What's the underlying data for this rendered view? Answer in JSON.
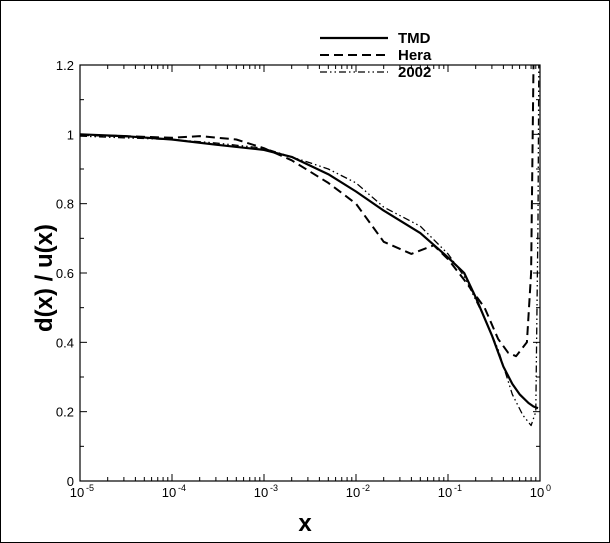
{
  "chart_data": {
    "type": "line",
    "title": "",
    "xlabel": "x",
    "ylabel": "d(x) / u(x)",
    "xscale": "log",
    "xlim": [
      1e-05,
      1
    ],
    "ylim": [
      0,
      1.2
    ],
    "grid": false,
    "legend_position": "top-right",
    "x_ticks": [
      {
        "base": "10",
        "exp": "-5",
        "value": 1e-05
      },
      {
        "base": "10",
        "exp": "-4",
        "value": 0.0001
      },
      {
        "base": "10",
        "exp": "-3",
        "value": 0.001
      },
      {
        "base": "10",
        "exp": "-2",
        "value": 0.01
      },
      {
        "base": "10",
        "exp": "-1",
        "value": 0.1
      },
      {
        "base": "10",
        "exp": "0",
        "value": 1
      }
    ],
    "y_ticks": [
      {
        "label": "0",
        "value": 0
      },
      {
        "label": "0.2",
        "value": 0.2
      },
      {
        "label": "0.4",
        "value": 0.4
      },
      {
        "label": "0.6",
        "value": 0.6
      },
      {
        "label": "0.8",
        "value": 0.8
      },
      {
        "label": "1",
        "value": 1
      },
      {
        "label": "1.2",
        "value": 1.2
      }
    ],
    "series": [
      {
        "name": "TMD",
        "style": "solid",
        "color": "#000000",
        "points": [
          [
            1e-05,
            1.0
          ],
          [
            3e-05,
            0.995
          ],
          [
            0.0001,
            0.985
          ],
          [
            0.0003,
            0.97
          ],
          [
            0.001,
            0.955
          ],
          [
            0.002,
            0.935
          ],
          [
            0.005,
            0.885
          ],
          [
            0.01,
            0.835
          ],
          [
            0.02,
            0.78
          ],
          [
            0.05,
            0.715
          ],
          [
            0.1,
            0.645
          ],
          [
            0.15,
            0.6
          ],
          [
            0.2,
            0.53
          ],
          [
            0.3,
            0.42
          ],
          [
            0.4,
            0.33
          ],
          [
            0.5,
            0.28
          ],
          [
            0.6,
            0.25
          ],
          [
            0.75,
            0.225
          ],
          [
            0.85,
            0.215
          ],
          [
            0.95,
            0.21
          ]
        ]
      },
      {
        "name": "Hera",
        "style": "dashed",
        "color": "#000000",
        "points": [
          [
            1e-05,
            0.998
          ],
          [
            3e-05,
            0.995
          ],
          [
            0.0001,
            0.99
          ],
          [
            0.0002,
            0.995
          ],
          [
            0.0005,
            0.985
          ],
          [
            0.001,
            0.96
          ],
          [
            0.002,
            0.925
          ],
          [
            0.005,
            0.86
          ],
          [
            0.01,
            0.8
          ],
          [
            0.02,
            0.69
          ],
          [
            0.04,
            0.655
          ],
          [
            0.07,
            0.68
          ],
          [
            0.1,
            0.64
          ],
          [
            0.15,
            0.58
          ],
          [
            0.25,
            0.5
          ],
          [
            0.35,
            0.41
          ],
          [
            0.45,
            0.37
          ],
          [
            0.55,
            0.36
          ],
          [
            0.65,
            0.385
          ],
          [
            0.72,
            0.4
          ],
          [
            0.8,
            0.6
          ],
          [
            0.85,
            1.2
          ]
        ]
      },
      {
        "name": "2002",
        "style": "dash-dot",
        "color": "#000000",
        "points": [
          [
            1e-05,
            0.995
          ],
          [
            3e-05,
            0.99
          ],
          [
            0.0001,
            0.985
          ],
          [
            0.0003,
            0.975
          ],
          [
            0.001,
            0.96
          ],
          [
            0.003,
            0.92
          ],
          [
            0.005,
            0.9
          ],
          [
            0.01,
            0.86
          ],
          [
            0.02,
            0.79
          ],
          [
            0.05,
            0.735
          ],
          [
            0.1,
            0.655
          ],
          [
            0.15,
            0.59
          ],
          [
            0.25,
            0.47
          ],
          [
            0.35,
            0.38
          ],
          [
            0.5,
            0.25
          ],
          [
            0.65,
            0.19
          ],
          [
            0.8,
            0.16
          ],
          [
            0.9,
            0.2
          ],
          [
            0.95,
            0.75
          ],
          [
            0.97,
            1.2
          ]
        ]
      }
    ]
  }
}
